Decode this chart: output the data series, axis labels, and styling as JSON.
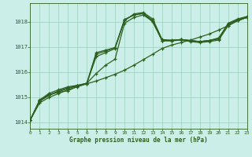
{
  "title": "Graphe pression niveau de la mer (hPa)",
  "bg_color": "#cceee8",
  "grid_color": "#99ccbb",
  "line_color": "#2d6020",
  "x_min": 0,
  "x_max": 23,
  "y_min": 1013.75,
  "y_max": 1018.75,
  "yticks": [
    1014,
    1015,
    1016,
    1017,
    1018
  ],
  "xticks": [
    0,
    1,
    2,
    3,
    4,
    5,
    6,
    7,
    8,
    9,
    10,
    11,
    12,
    13,
    14,
    15,
    16,
    17,
    18,
    19,
    20,
    21,
    22,
    23
  ],
  "series": [
    {
      "y": [
        1014.1,
        1014.78,
        1015.0,
        1015.15,
        1015.3,
        1015.42,
        1015.54,
        1015.65,
        1015.78,
        1015.92,
        1016.08,
        1016.28,
        1016.5,
        1016.72,
        1016.95,
        1017.08,
        1017.18,
        1017.28,
        1017.4,
        1017.52,
        1017.68,
        1017.85,
        1018.05,
        1018.18
      ],
      "lw": 0.9,
      "ls": "-",
      "marker": "+",
      "ms": 3.5,
      "mew": 0.9
    },
    {
      "y": [
        1014.1,
        1014.85,
        1015.08,
        1015.22,
        1015.35,
        1015.46,
        1015.56,
        1015.95,
        1016.28,
        1016.52,
        1017.95,
        1018.18,
        1018.28,
        1018.02,
        1017.25,
        1017.25,
        1017.28,
        1017.22,
        1017.18,
        1017.22,
        1017.28,
        1017.85,
        1018.05,
        1018.18
      ],
      "lw": 0.9,
      "ls": "-",
      "marker": "+",
      "ms": 3.5,
      "mew": 0.9
    },
    {
      "y": [
        1014.1,
        1014.88,
        1015.12,
        1015.2,
        1015.26,
        1015.44,
        1015.54,
        1016.72,
        1016.84,
        1016.98,
        1018.05,
        1018.32,
        1018.38,
        1018.12,
        1017.3,
        1017.28,
        1017.3,
        1017.26,
        1017.22,
        1017.26,
        1017.32,
        1017.95,
        1018.12,
        1018.22
      ],
      "lw": 0.9,
      "ls": "-",
      "marker": "+",
      "ms": 3.5,
      "mew": 0.9
    },
    {
      "y": [
        1014.1,
        1014.9,
        1015.16,
        1015.3,
        1015.42,
        1015.48,
        1015.56,
        1016.62,
        1016.78,
        1016.94,
        1018.08,
        1018.28,
        1018.34,
        1018.06,
        1017.26,
        1017.26,
        1017.3,
        1017.26,
        1017.22,
        1017.26,
        1017.36,
        1017.92,
        1018.08,
        1018.2
      ],
      "lw": 0.9,
      "ls": "-",
      "marker": "+",
      "ms": 3.5,
      "mew": 0.9
    },
    {
      "y": [
        1014.1,
        1014.86,
        1015.08,
        1015.26,
        1015.38,
        1015.46,
        1015.56,
        1016.78,
        1016.88,
        1016.98,
        1018.1,
        1018.28,
        1018.34,
        1018.0,
        1017.26,
        1017.26,
        1017.3,
        1017.26,
        1017.22,
        1017.26,
        1017.36,
        1017.92,
        1018.08,
        1018.2
      ],
      "lw": 0.9,
      "ls": "-",
      "marker": "+",
      "ms": 3.5,
      "mew": 0.9
    }
  ]
}
